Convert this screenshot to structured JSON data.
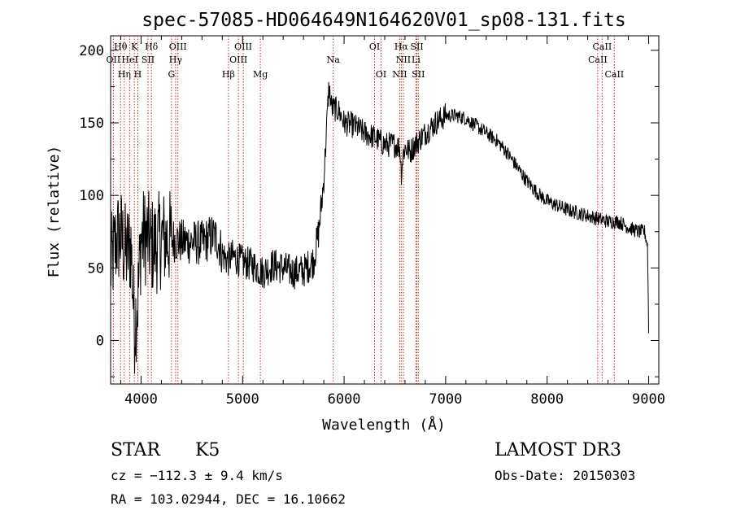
{
  "chart_data": {
    "type": "line",
    "title": "spec-57085-HD064649N164620V01_sp08-131.fits",
    "xlabel": "Wavelength (Å)",
    "ylabel": "Flux (relative)",
    "xlim": [
      3700,
      9100
    ],
    "ylim": [
      -30,
      210
    ],
    "xticks": [
      {
        "value": 4000,
        "label": "4000"
      },
      {
        "value": 5000,
        "label": "5000"
      },
      {
        "value": 6000,
        "label": "6000"
      },
      {
        "value": 7000,
        "label": "7000"
      },
      {
        "value": 8000,
        "label": "8000"
      },
      {
        "value": 9000,
        "label": "9000"
      }
    ],
    "yticks": [
      {
        "value": 0,
        "label": "0"
      },
      {
        "value": 50,
        "label": "50"
      },
      {
        "value": 100,
        "label": "100"
      },
      {
        "value": 150,
        "label": "150"
      },
      {
        "value": 200,
        "label": "200"
      }
    ],
    "series": [
      {
        "name": "spectrum",
        "anchors_x": [
          3700,
          3760,
          3800,
          3850,
          3900,
          3935,
          3970,
          4000,
          4050,
          4100,
          4150,
          4200,
          4300,
          4400,
          4500,
          4600,
          4700,
          4750,
          4800,
          4850,
          4900,
          5000,
          5100,
          5200,
          5300,
          5400,
          5500,
          5600,
          5700,
          5750,
          5800,
          5830,
          5850,
          5880,
          5900,
          5950,
          6000,
          6100,
          6200,
          6300,
          6400,
          6500,
          6550,
          6563,
          6580,
          6600,
          6650,
          6700,
          6800,
          6900,
          7000,
          7100,
          7200,
          7300,
          7400,
          7500,
          7600,
          7700,
          7800,
          7900,
          8000,
          8100,
          8200,
          8300,
          8400,
          8500,
          8600,
          8700,
          8800,
          8900,
          8960,
          8990,
          9000
        ],
        "anchors_y": [
          50,
          70,
          72,
          60,
          65,
          10,
          30,
          70,
          72,
          65,
          66,
          70,
          70,
          68,
          68,
          67,
          72,
          70,
          60,
          55,
          58,
          54,
          52,
          47,
          52,
          50,
          47,
          48,
          55,
          75,
          110,
          150,
          175,
          160,
          160,
          158,
          150,
          148,
          143,
          140,
          135,
          135,
          133,
          115,
          128,
          133,
          130,
          135,
          143,
          150,
          155,
          155,
          153,
          148,
          143,
          138,
          130,
          120,
          110,
          102,
          96,
          93,
          90,
          88,
          86,
          84,
          82,
          82,
          78,
          75,
          75,
          65,
          5
        ],
        "noise": [
          {
            "from": 3700,
            "to": 4300,
            "amplitude": 35
          },
          {
            "from": 4300,
            "to": 4800,
            "amplitude": 16
          },
          {
            "from": 4800,
            "to": 5800,
            "amplitude": 12
          },
          {
            "from": 5800,
            "to": 7000,
            "amplitude": 9
          },
          {
            "from": 7000,
            "to": 9000,
            "amplitude": 5
          }
        ]
      }
    ],
    "line_markers": [
      {
        "label": "OII",
        "wavelength": 3727,
        "row": 1
      },
      {
        "label": "Hθ",
        "wavelength": 3798,
        "row": 0
      },
      {
        "label": "Hη",
        "wavelength": 3835,
        "row": 2
      },
      {
        "label": "HeI",
        "wavelength": 3889,
        "row": 1
      },
      {
        "label": "K",
        "wavelength": 3934,
        "row": 0
      },
      {
        "label": "SII",
        "wavelength": 4068,
        "row": 1
      },
      {
        "label": "H",
        "wavelength": 3968,
        "row": 2
      },
      {
        "label": "Hδ",
        "wavelength": 4102,
        "row": 0
      },
      {
        "label": "G",
        "wavelength": 4300,
        "row": 2
      },
      {
        "label": "Hγ",
        "wavelength": 4340,
        "row": 1
      },
      {
        "label": "OIII",
        "wavelength": 4363,
        "row": 0
      },
      {
        "label": "Hβ",
        "wavelength": 4861,
        "row": 2
      },
      {
        "label": "OIII",
        "wavelength": 4959,
        "row": 1
      },
      {
        "label": "OIII",
        "wavelength": 5007,
        "row": 0
      },
      {
        "label": "Mg",
        "wavelength": 5175,
        "row": 2
      },
      {
        "label": "Na",
        "wavelength": 5893,
        "row": 1
      },
      {
        "label": "OI",
        "wavelength": 6300,
        "row": 0
      },
      {
        "label": "OI",
        "wavelength": 6364,
        "row": 2
      },
      {
        "label": "NII",
        "wavelength": 6548,
        "row": 2
      },
      {
        "label": "NII",
        "wavelength": 6584,
        "row": 1
      },
      {
        "label": "Hα",
        "wavelength": 6563,
        "row": 0
      },
      {
        "label": "SII",
        "wavelength": 6717,
        "row": 0
      },
      {
        "label": "Li",
        "wavelength": 6708,
        "row": 1
      },
      {
        "label": "SII",
        "wavelength": 6731,
        "row": 2
      },
      {
        "label": "CaII",
        "wavelength": 8498,
        "row": 1
      },
      {
        "label": "CaII",
        "wavelength": 8542,
        "row": 0
      },
      {
        "label": "CaII",
        "wavelength": 8662,
        "row": 2
      }
    ],
    "line_marker_color": "#c62828"
  },
  "info": {
    "object_type": "STAR",
    "subclass": "K5",
    "survey": "LAMOST DR3",
    "cz": "cz = −112.3 ± 9.4 km/s",
    "obs_date": "Obs-Date: 20150303",
    "coords": "RA = 103.02944, DEC =  16.10662"
  }
}
